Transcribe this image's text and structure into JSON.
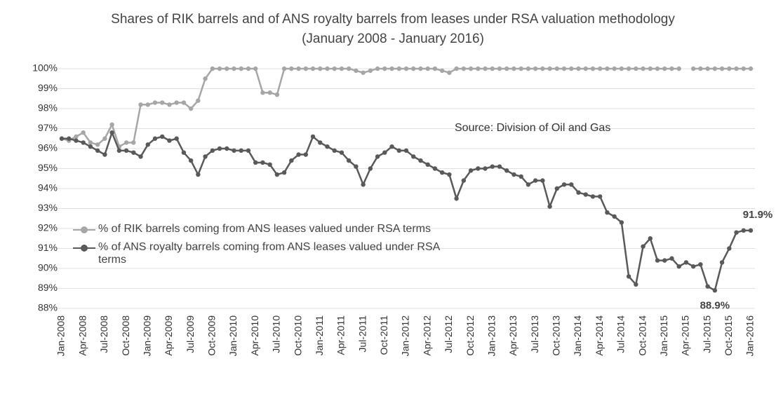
{
  "chart_data": {
    "type": "line",
    "title": "Shares of RIK barrels and of ANS royalty barrels from leases under RSA valuation methodology (January 2008 - January 2016)",
    "annotation": "Source: Division of Oil and Gas",
    "categories": [
      "Jan-2008",
      null,
      null,
      "Apr-2008",
      null,
      null,
      "Jul-2008",
      null,
      null,
      "Oct-2008",
      null,
      null,
      "Jan-2009",
      null,
      null,
      "Apr-2009",
      null,
      null,
      "Jul-2009",
      null,
      null,
      "Oct-2009",
      null,
      null,
      "Jan-2010",
      null,
      null,
      "Apr-2010",
      null,
      null,
      "Jul-2010",
      null,
      null,
      "Oct-2010",
      null,
      null,
      "Jan-2011",
      null,
      null,
      "Apr-2011",
      null,
      null,
      "Jul-2011",
      null,
      null,
      "Oct-2011",
      null,
      null,
      "Jan-2012",
      null,
      null,
      "Apr-2012",
      null,
      null,
      "Jul-2012",
      null,
      null,
      "Oct-2012",
      null,
      null,
      "Jan-2013",
      null,
      null,
      "Apr-2013",
      null,
      null,
      "Jul-2013",
      null,
      null,
      "Oct-2013",
      null,
      null,
      "Jan-2014",
      null,
      null,
      "Apr-2014",
      null,
      null,
      "Jul-2014",
      null,
      null,
      "Oct-2014",
      null,
      null,
      "Jan-2015",
      null,
      null,
      "Apr-2015",
      null,
      null,
      "Jul-2015",
      null,
      null,
      "Oct-2015",
      null,
      null,
      "Jan-2016"
    ],
    "series": [
      {
        "name": "% of RIK barrels coming from ANS leases valued under RSA terms",
        "color": "#a6a6a6",
        "values": [
          96.5,
          96.4,
          96.6,
          96.8,
          96.3,
          96.2,
          96.5,
          97.2,
          96.1,
          96.3,
          96.3,
          98.2,
          98.2,
          98.3,
          98.3,
          98.2,
          98.3,
          98.3,
          98.0,
          98.4,
          99.5,
          100,
          100,
          100,
          100,
          100,
          100,
          100,
          98.8,
          98.8,
          98.7,
          100,
          100,
          100,
          100,
          100,
          100,
          100,
          100,
          100,
          100,
          99.9,
          99.8,
          99.9,
          100,
          100,
          100,
          100,
          100,
          100,
          100,
          100,
          100,
          99.9,
          99.8,
          100,
          100,
          100,
          100,
          100,
          100,
          100,
          100,
          100,
          100,
          100,
          100,
          100,
          100,
          100,
          100,
          100,
          100,
          100,
          100,
          100,
          100,
          100,
          100,
          100,
          100,
          100,
          100,
          100,
          100,
          100,
          100,
          null,
          100,
          100,
          100,
          100,
          100,
          100,
          100,
          100,
          100
        ]
      },
      {
        "name": "% of ANS royalty barrels coming from ANS leases valued under RSA terms",
        "color": "#595959",
        "values": [
          96.5,
          96.5,
          96.4,
          96.3,
          96.1,
          95.9,
          95.7,
          96.8,
          95.9,
          95.9,
          95.8,
          95.6,
          96.2,
          96.5,
          96.6,
          96.4,
          96.5,
          95.8,
          95.4,
          94.7,
          95.6,
          95.9,
          96.0,
          96.0,
          95.9,
          95.9,
          95.9,
          95.3,
          95.3,
          95.2,
          94.7,
          94.8,
          95.4,
          95.7,
          95.7,
          96.6,
          96.3,
          96.1,
          95.9,
          95.8,
          95.4,
          95.1,
          94.2,
          95.0,
          95.6,
          95.8,
          96.1,
          95.9,
          95.9,
          95.6,
          95.4,
          95.2,
          95.0,
          94.8,
          94.7,
          93.5,
          94.4,
          94.9,
          95.0,
          95.0,
          95.1,
          95.1,
          94.9,
          94.7,
          94.6,
          94.2,
          94.4,
          94.4,
          93.1,
          94.0,
          94.2,
          94.2,
          93.8,
          93.7,
          93.6,
          93.6,
          92.8,
          92.6,
          92.3,
          89.6,
          89.2,
          91.1,
          91.5,
          90.4,
          90.4,
          90.5,
          90.1,
          90.3,
          90.1,
          90.2,
          89.1,
          88.9,
          90.3,
          91.0,
          91.8,
          91.9,
          91.9
        ],
        "value_labels": [
          null,
          null,
          null,
          null,
          null,
          null,
          null,
          null,
          null,
          null,
          null,
          null,
          null,
          null,
          null,
          null,
          null,
          null,
          null,
          null,
          null,
          null,
          null,
          null,
          null,
          null,
          null,
          null,
          null,
          null,
          null,
          null,
          null,
          null,
          null,
          null,
          null,
          null,
          null,
          null,
          null,
          null,
          null,
          null,
          null,
          null,
          null,
          null,
          null,
          null,
          null,
          null,
          null,
          null,
          null,
          null,
          null,
          null,
          null,
          null,
          null,
          null,
          null,
          null,
          null,
          null,
          null,
          null,
          null,
          null,
          null,
          null,
          null,
          null,
          null,
          null,
          null,
          null,
          null,
          null,
          null,
          null,
          null,
          null,
          null,
          null,
          null,
          null,
          null,
          null,
          null,
          "88.9%",
          null,
          null,
          null,
          null,
          "91.9%"
        ]
      }
    ],
    "ylim": [
      88,
      100
    ],
    "yticks": [
      {
        "value": 88,
        "label": "88%"
      },
      {
        "value": 89,
        "label": "89%"
      },
      {
        "value": 90,
        "label": "90%"
      },
      {
        "value": 91,
        "label": "91%"
      },
      {
        "value": 92,
        "label": "92%"
      },
      {
        "value": 93,
        "label": "93%"
      },
      {
        "value": 94,
        "label": "94%"
      },
      {
        "value": 95,
        "label": "95%"
      },
      {
        "value": 96,
        "label": "96%"
      },
      {
        "value": 97,
        "label": "97%"
      },
      {
        "value": 98,
        "label": "98%"
      },
      {
        "value": 99,
        "label": "99%"
      },
      {
        "value": 100,
        "label": "100%"
      }
    ],
    "grid": true
  }
}
